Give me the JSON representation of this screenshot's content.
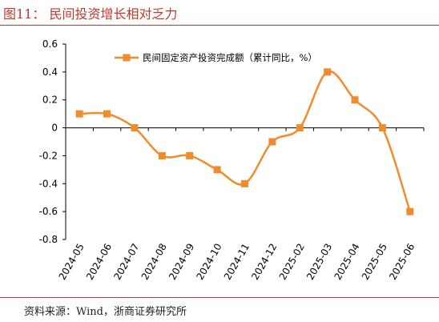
{
  "header": {
    "title": "图11：  民间投资增长相对乏力"
  },
  "footer": {
    "source": "资料来源：Wind，浙商证券研究所"
  },
  "chart_data": {
    "type": "line",
    "title": "",
    "xlabel": "",
    "ylabel": "",
    "categories": [
      "2024-05",
      "2024-06",
      "2024-07",
      "2024-08",
      "2024-09",
      "2024-10",
      "2024-11",
      "2024-12",
      "2025-02",
      "2025-03",
      "2025-04",
      "2025-05",
      "2025-06"
    ],
    "series": [
      {
        "name": "民间固定资产投资完成额（累计同比，%）",
        "values": [
          0.1,
          0.1,
          0.0,
          -0.2,
          -0.2,
          -0.3,
          -0.4,
          -0.1,
          0.0,
          0.4,
          0.2,
          0.0,
          -0.6
        ]
      }
    ],
    "ylim": [
      -0.8,
      0.6
    ],
    "yticks": [
      -0.8,
      -0.6,
      -0.4,
      -0.2,
      0,
      0.2,
      0.4,
      0.6
    ],
    "ytick_labels": [
      "-0.8",
      "-0.6",
      "-0.4",
      "-0.2",
      "0",
      "0.2",
      "0.4",
      "0.6"
    ],
    "grid": false,
    "legend_position": "top-center",
    "colors": {
      "series": "#f08c2d",
      "axis": "#000000",
      "title": "#c0392b",
      "rule": "#c0392b"
    }
  }
}
